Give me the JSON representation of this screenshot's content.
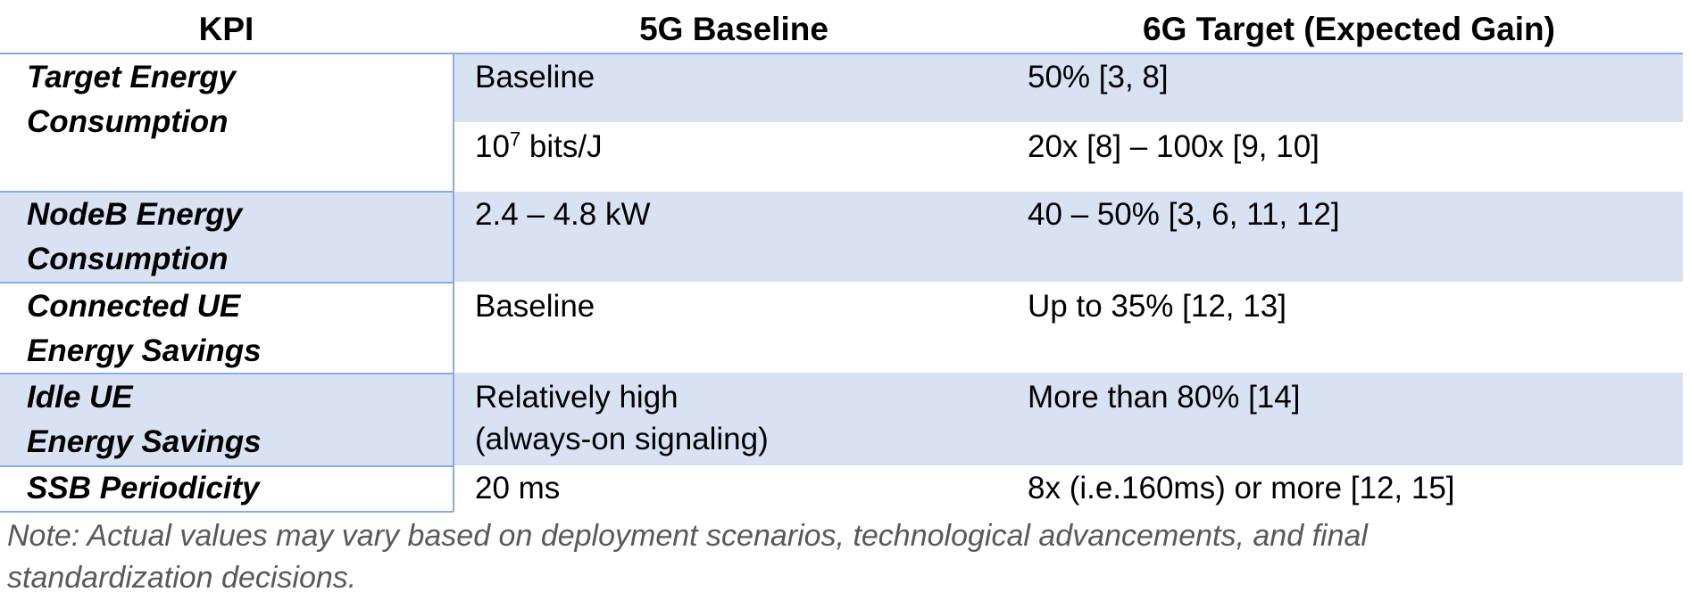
{
  "table": {
    "header": [
      "KPI",
      "5G Baseline",
      "6G Target (Expected Gain)"
    ],
    "rows": [
      {
        "kpi": [
          "Target Energy",
          "Consumption"
        ],
        "baseline": "Baseline",
        "target": "50% [3, 8]"
      },
      {
        "baseline_parts": [
          "10",
          "7",
          " bits/J"
        ],
        "target": "20x [8] – 100x [9, 10]"
      },
      {
        "kpi": [
          "NodeB Energy",
          "Consumption"
        ],
        "baseline": "2.4 – 4.8 kW",
        "target": "40 – 50% [3, 6, 11, 12]"
      },
      {
        "kpi": [
          "Connected UE",
          "Energy Savings"
        ],
        "baseline": "Baseline",
        "target": "Up to 35% [12, 13]"
      },
      {
        "kpi": [
          "Idle UE",
          "Energy Savings"
        ],
        "baseline_lines": [
          "Relatively high",
          "(always-on signaling)"
        ],
        "target": "More than 80% [14]"
      },
      {
        "kpi": [
          "SSB Periodicity"
        ],
        "baseline": "20 ms",
        "target": "8x (i.e.160ms) or more [12, 15]"
      }
    ],
    "note": [
      "Note: Actual values may vary based on deployment scenarios, technological advancements, and final",
      "standardization decisions."
    ]
  }
}
